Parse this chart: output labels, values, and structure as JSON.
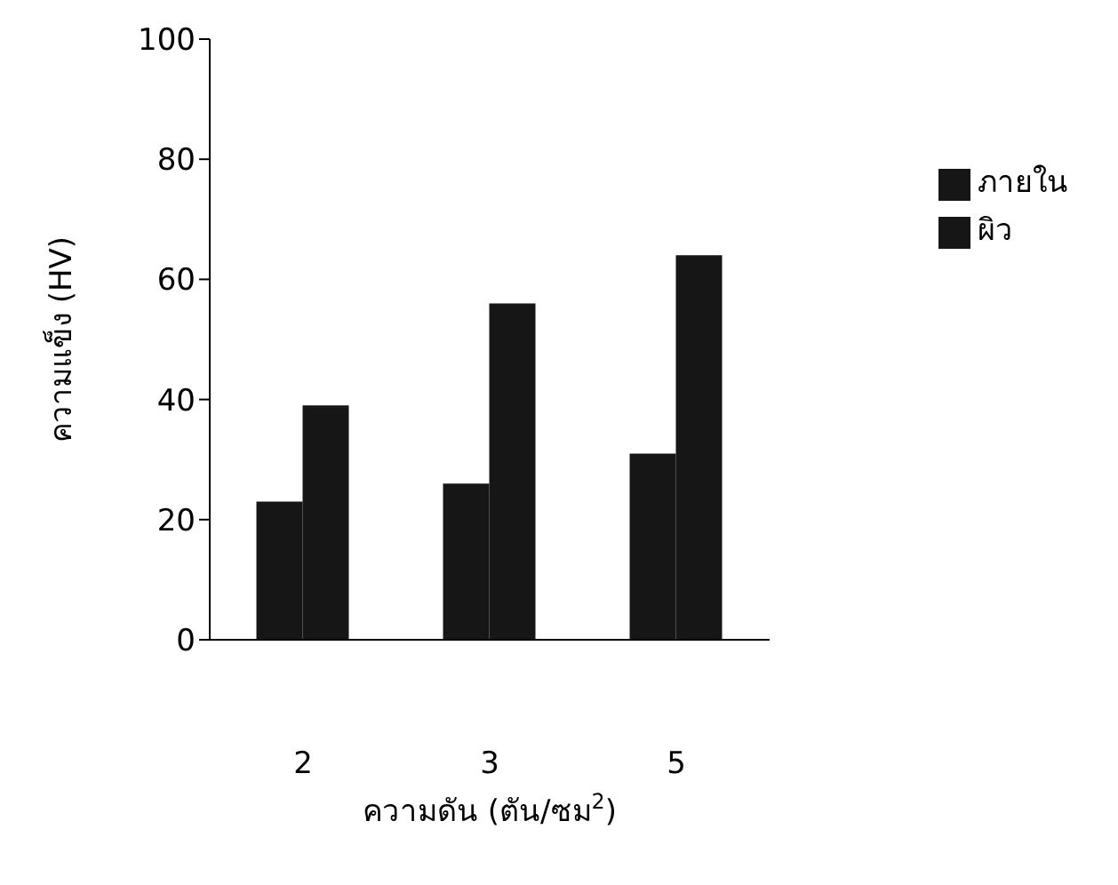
{
  "chart_data": {
    "type": "bar",
    "xlabel": "ความดัน (ตัน/ซม$^{2}$)",
    "ylabel": "ความแข็ง (HV)",
    "categories": [
      "2",
      "3",
      "5"
    ],
    "series": [
      {
        "name": "ภายใน",
        "color": "#161616",
        "values": [
          23,
          26,
          31
        ]
      },
      {
        "name": "ผิว",
        "color": "#161616",
        "values": [
          39,
          56,
          64
        ]
      }
    ],
    "ylim": [
      0,
      100
    ],
    "yticks": [
      0,
      20,
      40,
      60,
      80,
      100
    ],
    "grid": false,
    "legend": "right"
  }
}
